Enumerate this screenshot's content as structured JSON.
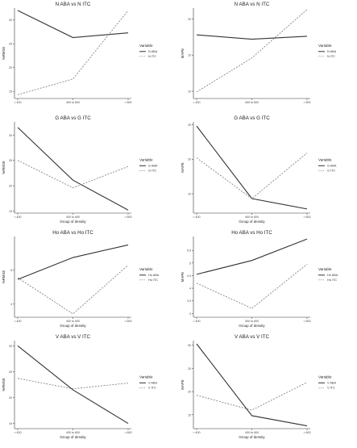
{
  "chart_data": [
    {
      "type": "line",
      "title": "N ABA vs N ITC",
      "xlabel": "",
      "ylabel": "%RMSE",
      "categories": [
        "< 400",
        "400 to 600",
        "> 600"
      ],
      "ylim": [
        13.5,
        32.5
      ],
      "yticks": [
        15,
        20,
        25,
        30
      ],
      "legend_title": "Variable",
      "legend_position": "right",
      "series": [
        {
          "name": "N ABA",
          "style": "solid",
          "values": [
            32.0,
            26.3,
            27.3
          ]
        },
        {
          "name": "N ITC",
          "style": "dashed",
          "values": [
            14.3,
            17.6,
            32.0
          ]
        }
      ]
    },
    {
      "type": "line",
      "title": "N ABA vs N ITC",
      "xlabel": "",
      "ylabel": "MAPE",
      "categories": [
        "< 400",
        "400 to 600",
        "> 600"
      ],
      "ylim": [
        9.0,
        21.5
      ],
      "yticks": [
        10,
        15,
        20
      ],
      "legend_title": "Variable",
      "legend_position": "right",
      "series": [
        {
          "name": "N ABA",
          "style": "solid",
          "values": [
            17.8,
            17.2,
            17.6
          ]
        },
        {
          "name": "N ITC",
          "style": "dashed",
          "values": [
            9.9,
            14.6,
            21.3
          ]
        }
      ]
    },
    {
      "type": "line",
      "title": "G ABA vs G ITC",
      "xlabel": "Group of density",
      "ylabel": "%RMSE",
      "categories": [
        "< 400",
        "400 to 600",
        "> 600"
      ],
      "ylim": [
        14.6,
        32.6
      ],
      "yticks": [
        15,
        20,
        25,
        30
      ],
      "legend_title": "Variable",
      "legend_position": "right",
      "series": [
        {
          "name": "G ABA",
          "style": "solid",
          "values": [
            31.5,
            21.1,
            15.2
          ]
        },
        {
          "name": "G ITC",
          "style": "dashed",
          "values": [
            25.0,
            19.6,
            23.8
          ]
        }
      ]
    },
    {
      "type": "line",
      "title": "G ABA vs G ITC",
      "xlabel": "Group of density",
      "ylabel": "MAPE",
      "categories": [
        "< 400",
        "400 to 600",
        "> 600"
      ],
      "ylim": [
        12.2,
        25.4
      ],
      "yticks": [
        15,
        20,
        25
      ],
      "legend_title": "Variable",
      "legend_position": "right",
      "series": [
        {
          "name": "G ABA",
          "style": "solid",
          "values": [
            24.8,
            14.3,
            12.8
          ]
        },
        {
          "name": "G ITC",
          "style": "dashed",
          "values": [
            20.2,
            14.3,
            20.9
          ]
        }
      ]
    },
    {
      "type": "line",
      "title": "Ho ABA vs Ho ITC",
      "xlabel": "Group of density",
      "ylabel": "%RMSE",
      "categories": [
        "< 400",
        "400 to 600",
        "> 600"
      ],
      "ylim": [
        3.2,
        8.0
      ],
      "yticks": [
        4,
        6
      ],
      "legend_title": "Variable",
      "legend_position": "right",
      "series": [
        {
          "name": "Ho ABA",
          "style": "solid",
          "values": [
            5.45,
            6.75,
            7.5
          ]
        },
        {
          "name": "Ho ITC",
          "style": "dashed",
          "values": [
            5.55,
            3.4,
            6.3
          ]
        }
      ]
    },
    {
      "type": "line",
      "title": "Ho ABA vs Ho ITC",
      "xlabel": "Group of density",
      "ylabel": "MAPE",
      "categories": [
        "< 400",
        "400 to 600",
        "> 600"
      ],
      "ylim": [
        2.85,
        6.05
      ],
      "yticks": [
        3.0,
        3.5,
        4.0,
        4.5,
        5.0,
        5.5
      ],
      "legend_title": "Variable",
      "legend_position": "right",
      "series": [
        {
          "name": "Ho ABA",
          "style": "solid",
          "values": [
            4.55,
            5.1,
            5.95
          ]
        },
        {
          "name": "Ho ITC",
          "style": "dashed",
          "values": [
            4.2,
            3.2,
            4.95
          ]
        }
      ]
    },
    {
      "type": "line",
      "title": "V ABA vs V ITC",
      "xlabel": "Group of density",
      "ylabel": "%RMSE",
      "categories": [
        "< 400",
        "400 to 600",
        "> 600"
      ],
      "ylim": [
        14.0,
        31.0
      ],
      "yticks": [
        15,
        20,
        25,
        30
      ],
      "legend_title": "Variable",
      "legend_position": "right",
      "series": [
        {
          "name": "V ABA",
          "style": "solid",
          "values": [
            30.0,
            21.5,
            15.0
          ]
        },
        {
          "name": "V ITC",
          "style": "dashed",
          "values": [
            23.7,
            21.7,
            22.8
          ]
        }
      ]
    },
    {
      "type": "line",
      "title": "V ABA vs V ITC",
      "xlabel": "Group of density",
      "ylabel": "MAPE",
      "categories": [
        "< 400",
        "400 to 600",
        "> 600"
      ],
      "ylim": [
        12.0,
        31.0
      ],
      "yticks": [
        15,
        20,
        25,
        30
      ],
      "legend_title": "Variable",
      "legend_position": "right",
      "series": [
        {
          "name": "V ABA",
          "style": "solid",
          "values": [
            30.3,
            14.8,
            12.6
          ]
        },
        {
          "name": "V ITC",
          "style": "dashed",
          "values": [
            19.2,
            16.0,
            22.0
          ]
        }
      ]
    }
  ]
}
